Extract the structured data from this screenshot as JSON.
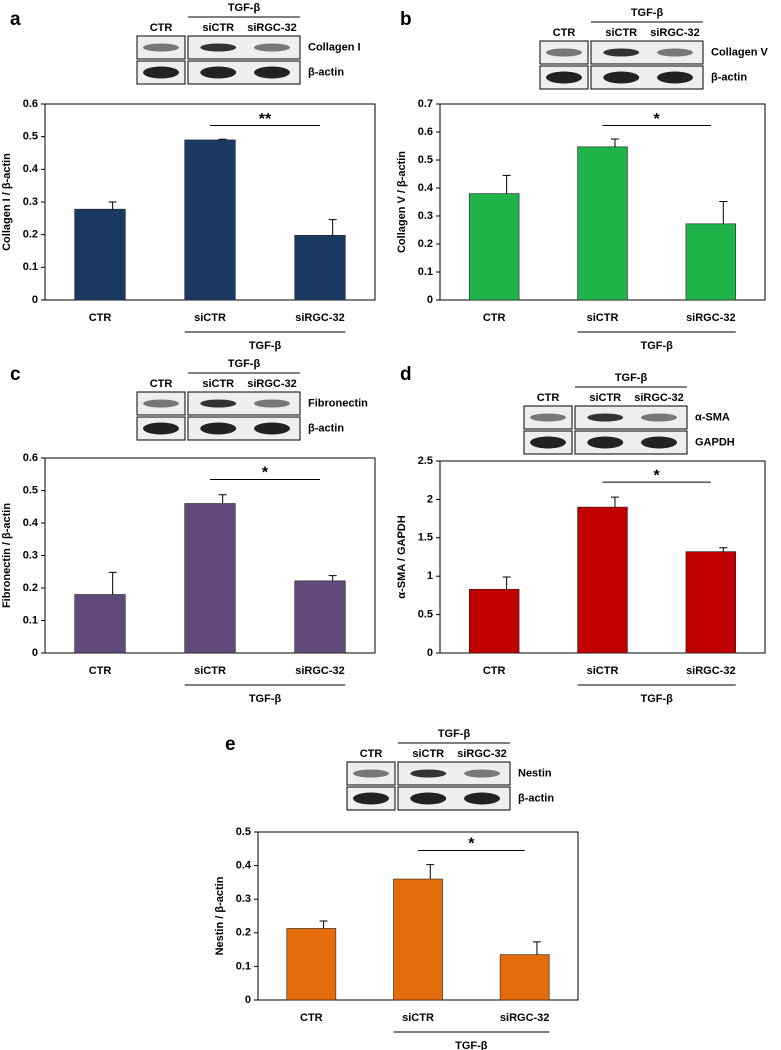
{
  "chart_data": [
    {
      "type": "bar",
      "panel": "a",
      "ylabel": "Collagen I / β-actin",
      "categories": [
        "CTR",
        "siCTR",
        "siRGC-32"
      ],
      "values": [
        0.278,
        0.49,
        0.198
      ],
      "errors": [
        0.022,
        0.002,
        0.048
      ],
      "color": "#1b3a63",
      "ylim": [
        0,
        0.6
      ],
      "yticks": [
        0,
        0.1,
        0.2,
        0.3,
        0.4,
        0.5,
        0.6
      ],
      "group_label": "TGF-β",
      "significance": "**",
      "blot": {
        "lanes": [
          "CTR",
          "siCTR",
          "siRGC-32"
        ],
        "group_label": "TGF-β",
        "proteins": [
          "Collagen I",
          "β-actin"
        ]
      }
    },
    {
      "type": "bar",
      "panel": "b",
      "ylabel": "Collagen V / β-actin",
      "categories": [
        "CTR",
        "siCTR",
        "siRGC-32"
      ],
      "values": [
        0.38,
        0.547,
        0.272
      ],
      "errors": [
        0.065,
        0.028,
        0.08
      ],
      "color": "#1fb34a",
      "ylim": [
        0,
        0.7
      ],
      "yticks": [
        0,
        0.1,
        0.2,
        0.3,
        0.4,
        0.5,
        0.6,
        0.7
      ],
      "group_label": "TGF-β",
      "significance": "*",
      "blot": {
        "lanes": [
          "CTR",
          "siCTR",
          "siRGC-32"
        ],
        "group_label": "TGF-β",
        "proteins": [
          "Collagen V",
          "β-actin"
        ]
      }
    },
    {
      "type": "bar",
      "panel": "c",
      "ylabel": "Fibronectin / β-actin",
      "categories": [
        "CTR",
        "siCTR",
        "siRGC-32"
      ],
      "values": [
        0.18,
        0.46,
        0.222
      ],
      "errors": [
        0.068,
        0.027,
        0.016
      ],
      "color": "#604a7b",
      "ylim": [
        0,
        0.6
      ],
      "yticks": [
        0,
        0.1,
        0.2,
        0.3,
        0.4,
        0.5,
        0.6
      ],
      "group_label": "TGF-β",
      "significance": "*",
      "blot": {
        "lanes": [
          "CTR",
          "siCTR",
          "siRGC-32"
        ],
        "group_label": "TGF-β",
        "proteins": [
          "Fibronectin",
          "β-actin"
        ]
      }
    },
    {
      "type": "bar",
      "panel": "d",
      "ylabel": "α-SMA / GAPDH",
      "categories": [
        "CTR",
        "siCTR",
        "siRGC-32"
      ],
      "values": [
        0.83,
        1.9,
        1.32
      ],
      "errors": [
        0.16,
        0.13,
        0.05
      ],
      "color": "#c00000",
      "ylim": [
        0,
        2.5
      ],
      "yticks": [
        0,
        0.5,
        1,
        1.5,
        2,
        2.5
      ],
      "group_label": "TGF-β",
      "significance": "*",
      "blot": {
        "lanes": [
          "CTR",
          "siCTR",
          "siRGC-32"
        ],
        "group_label": "TGF-β",
        "proteins": [
          "α-SMA",
          "GAPDH"
        ]
      }
    },
    {
      "type": "bar",
      "panel": "e",
      "ylabel": "Nestin / β-actin",
      "categories": [
        "CTR",
        "siCTR",
        "siRGC-32"
      ],
      "values": [
        0.213,
        0.36,
        0.135
      ],
      "errors": [
        0.022,
        0.043,
        0.038
      ],
      "color": "#e46c0a",
      "ylim": [
        0,
        0.5
      ],
      "yticks": [
        0,
        0.1,
        0.2,
        0.3,
        0.4,
        0.5
      ],
      "group_label": "TGF-β",
      "significance": "*",
      "blot": {
        "lanes": [
          "CTR",
          "siCTR",
          "siRGC-32"
        ],
        "group_label": "TGF-β",
        "proteins": [
          "Nestin",
          "β-actin"
        ]
      }
    }
  ]
}
